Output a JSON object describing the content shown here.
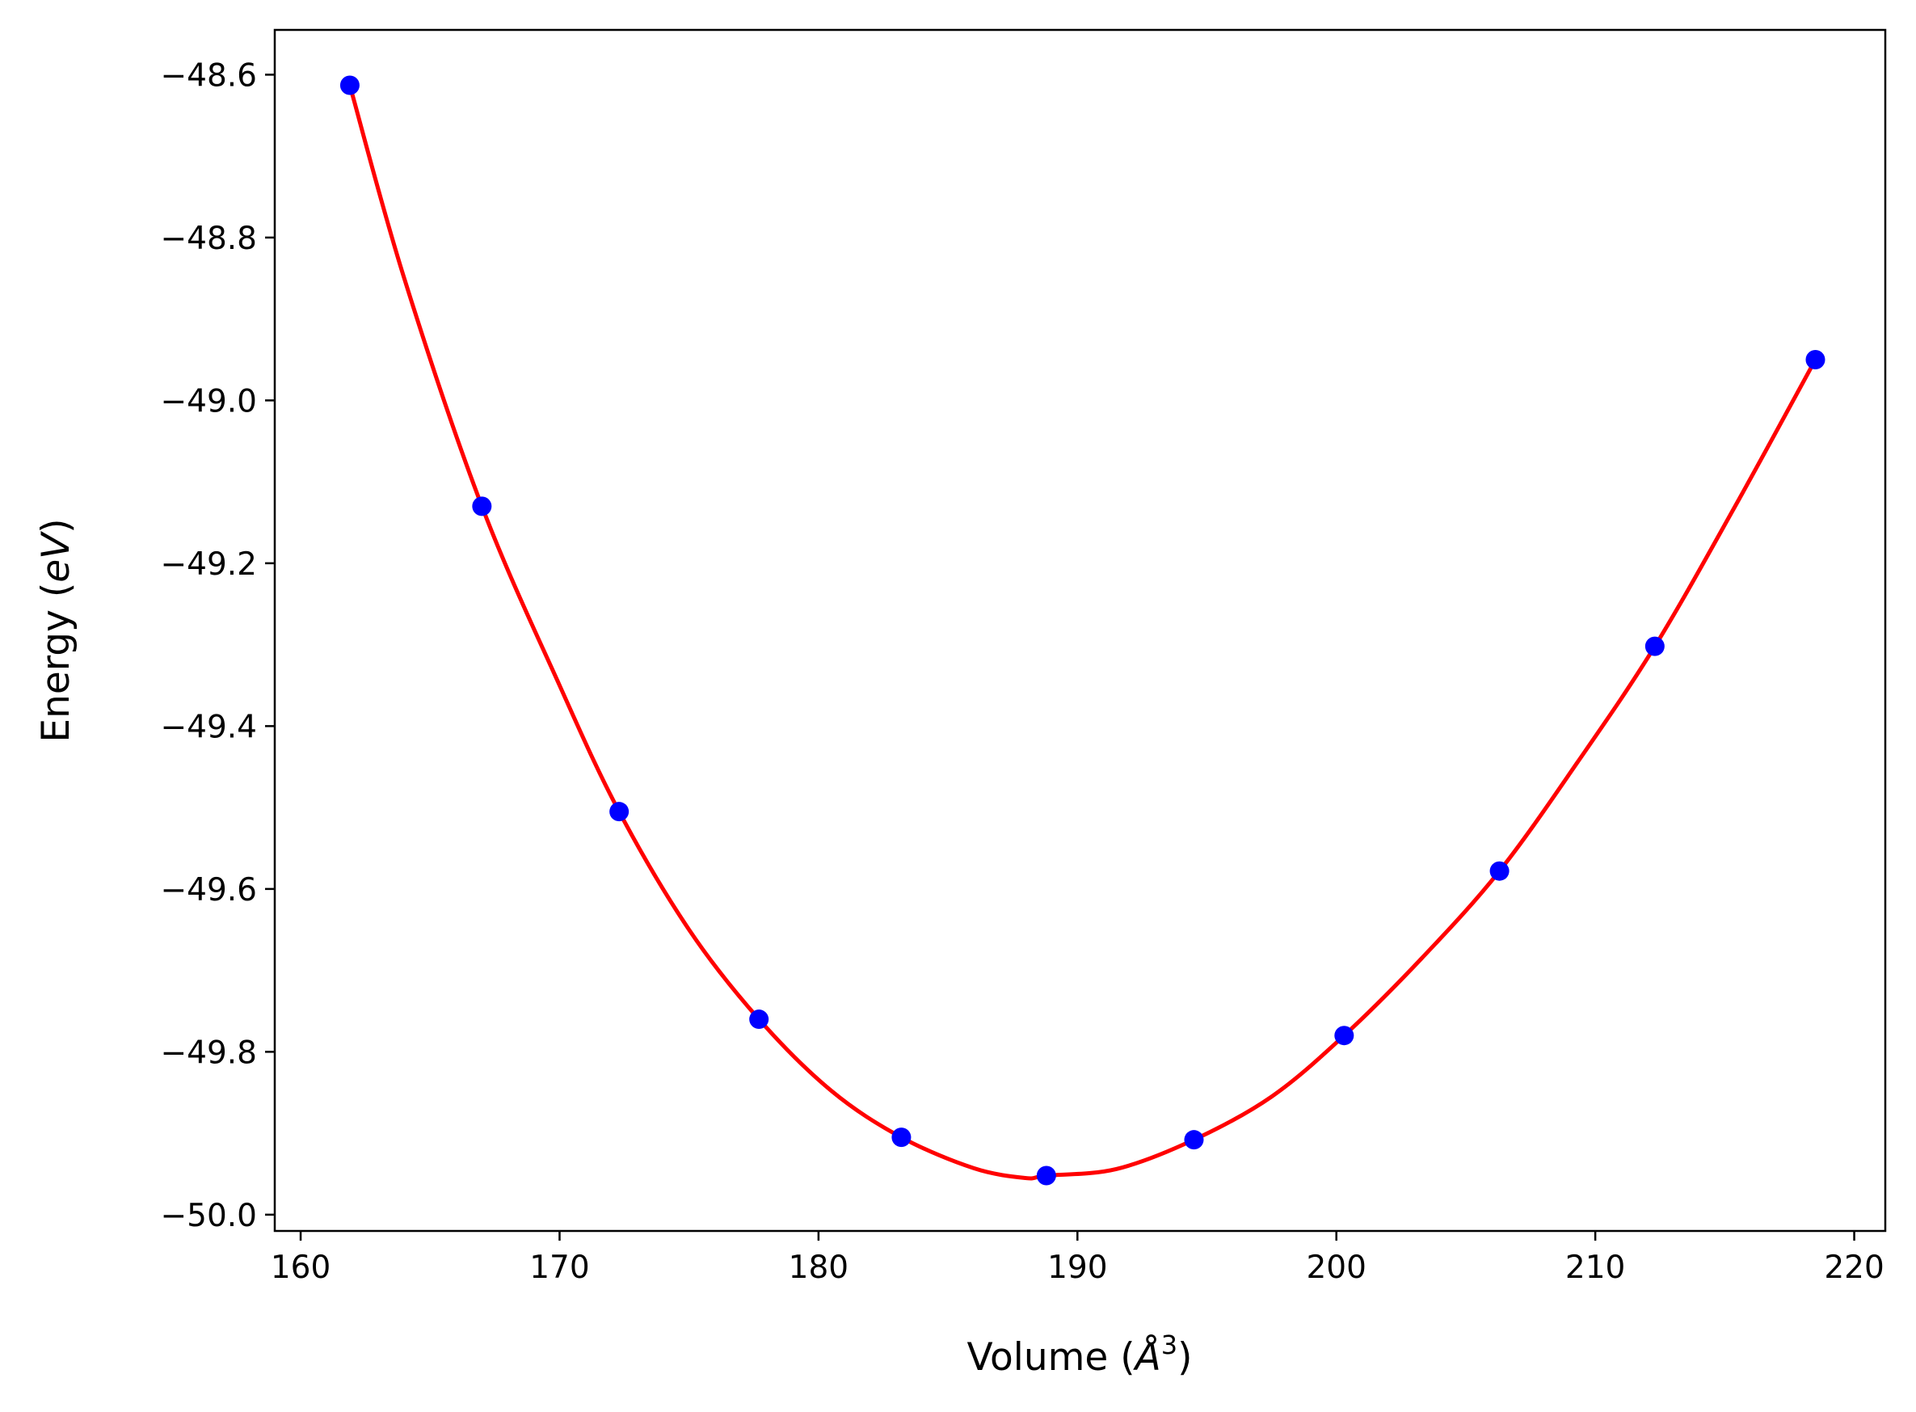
{
  "chart_data": {
    "type": "scatter",
    "title": "",
    "xlabel": {
      "prefix": "Volume (",
      "unit": "Å",
      "power": "3",
      "suffix": ")"
    },
    "ylabel": {
      "prefix": "Energy (",
      "unit": "eV",
      "suffix": ")"
    },
    "xlim": [
      159,
      221.2
    ],
    "ylim": [
      -50.02,
      -48.545
    ],
    "xticks": [
      160,
      170,
      180,
      190,
      200,
      210,
      220
    ],
    "xtick_labels": [
      "160",
      "170",
      "180",
      "190",
      "200",
      "210",
      "220"
    ],
    "yticks": [
      -48.6,
      -48.8,
      -49.0,
      -49.2,
      -49.4,
      -49.6,
      -49.8,
      -50.0
    ],
    "ytick_labels": [
      "−48.6",
      "−48.8",
      "−49.0",
      "−49.2",
      "−49.4",
      "−49.6",
      "−49.8",
      "−50.0"
    ],
    "grid": false,
    "series": [
      {
        "kind": "points",
        "color": "#0000ff",
        "x": [
          161.9,
          167.0,
          172.3,
          177.7,
          183.2,
          188.8,
          194.5,
          200.3,
          206.3,
          212.3,
          218.5
        ],
        "y": [
          -48.613,
          -49.13,
          -49.505,
          -49.76,
          -49.905,
          -49.952,
          -49.908,
          -49.78,
          -49.578,
          -49.302,
          -48.95
        ]
      },
      {
        "kind": "fit-curve",
        "color": "#ff0000",
        "x": [
          161.9,
          164.0,
          167.0,
          170.0,
          172.3,
          175.0,
          177.7,
          180.5,
          183.2,
          186.0,
          188.0,
          188.8,
          191.5,
          194.5,
          197.5,
          200.3,
          203.3,
          206.3,
          209.3,
          212.3,
          215.4,
          218.5
        ],
        "y": [
          -48.613,
          -48.85,
          -49.13,
          -49.35,
          -49.505,
          -49.65,
          -49.76,
          -49.848,
          -49.905,
          -49.943,
          -49.955,
          -49.952,
          -49.944,
          -49.908,
          -49.855,
          -49.78,
          -49.685,
          -49.578,
          -49.445,
          -49.302,
          -49.13,
          -48.95
        ]
      }
    ]
  }
}
